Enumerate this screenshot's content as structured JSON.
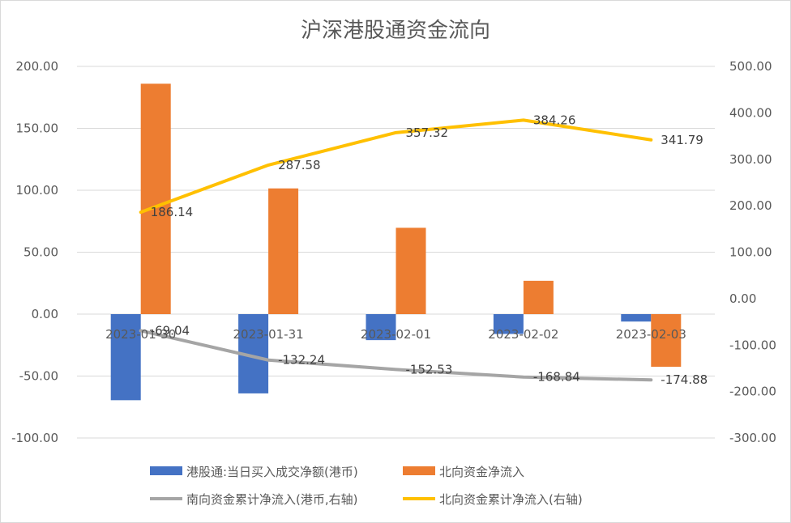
{
  "chart_data": {
    "type": "bar+line",
    "title": "沪深港股通资金流向",
    "categories": [
      "2023-01-30",
      "2023-01-31",
      "2023-02-01",
      "2023-02-02",
      "2023-02-03"
    ],
    "left_axis": {
      "ylim": [
        -100,
        200
      ],
      "ticks": [
        "200.00",
        "150.00",
        "100.00",
        "50.00",
        "0.00",
        "-50.00",
        "-100.00"
      ]
    },
    "right_axis": {
      "ylim": [
        -300,
        500
      ],
      "ticks": [
        "500.00",
        "400.00",
        "300.00",
        "200.00",
        "100.00",
        "0.00",
        "-100.00",
        "-200.00",
        "-300.00"
      ]
    },
    "series": [
      {
        "name": "港股通:当日买入成交净额(港币)",
        "kind": "bar",
        "axis": "left",
        "color": "#4472C4",
        "values": [
          -69.5,
          -64.0,
          -21.0,
          -16.0,
          -6.0
        ]
      },
      {
        "name": "北向资金净流入",
        "kind": "bar",
        "axis": "left",
        "color": "#ED7D31",
        "values": [
          186.0,
          101.5,
          69.7,
          26.9,
          -42.5
        ]
      },
      {
        "name": "南向资金累计净流入(港币,右轴)",
        "kind": "line",
        "axis": "right",
        "color": "#A5A5A5",
        "values": [
          -69.04,
          -132.24,
          -152.53,
          -168.84,
          -174.88
        ],
        "labels": [
          "-69.04",
          "-132.24",
          "-152.53",
          "-168.84",
          "-174.88"
        ]
      },
      {
        "name": "北向资金累计净流入(右轴)",
        "kind": "line",
        "axis": "right",
        "color": "#FFC000",
        "values": [
          186.14,
          287.58,
          357.32,
          384.26,
          341.79
        ],
        "labels": [
          "186.14",
          "287.58",
          "357.32",
          "384.26",
          "341.79"
        ]
      }
    ],
    "grid": true,
    "legend_position": "bottom"
  }
}
